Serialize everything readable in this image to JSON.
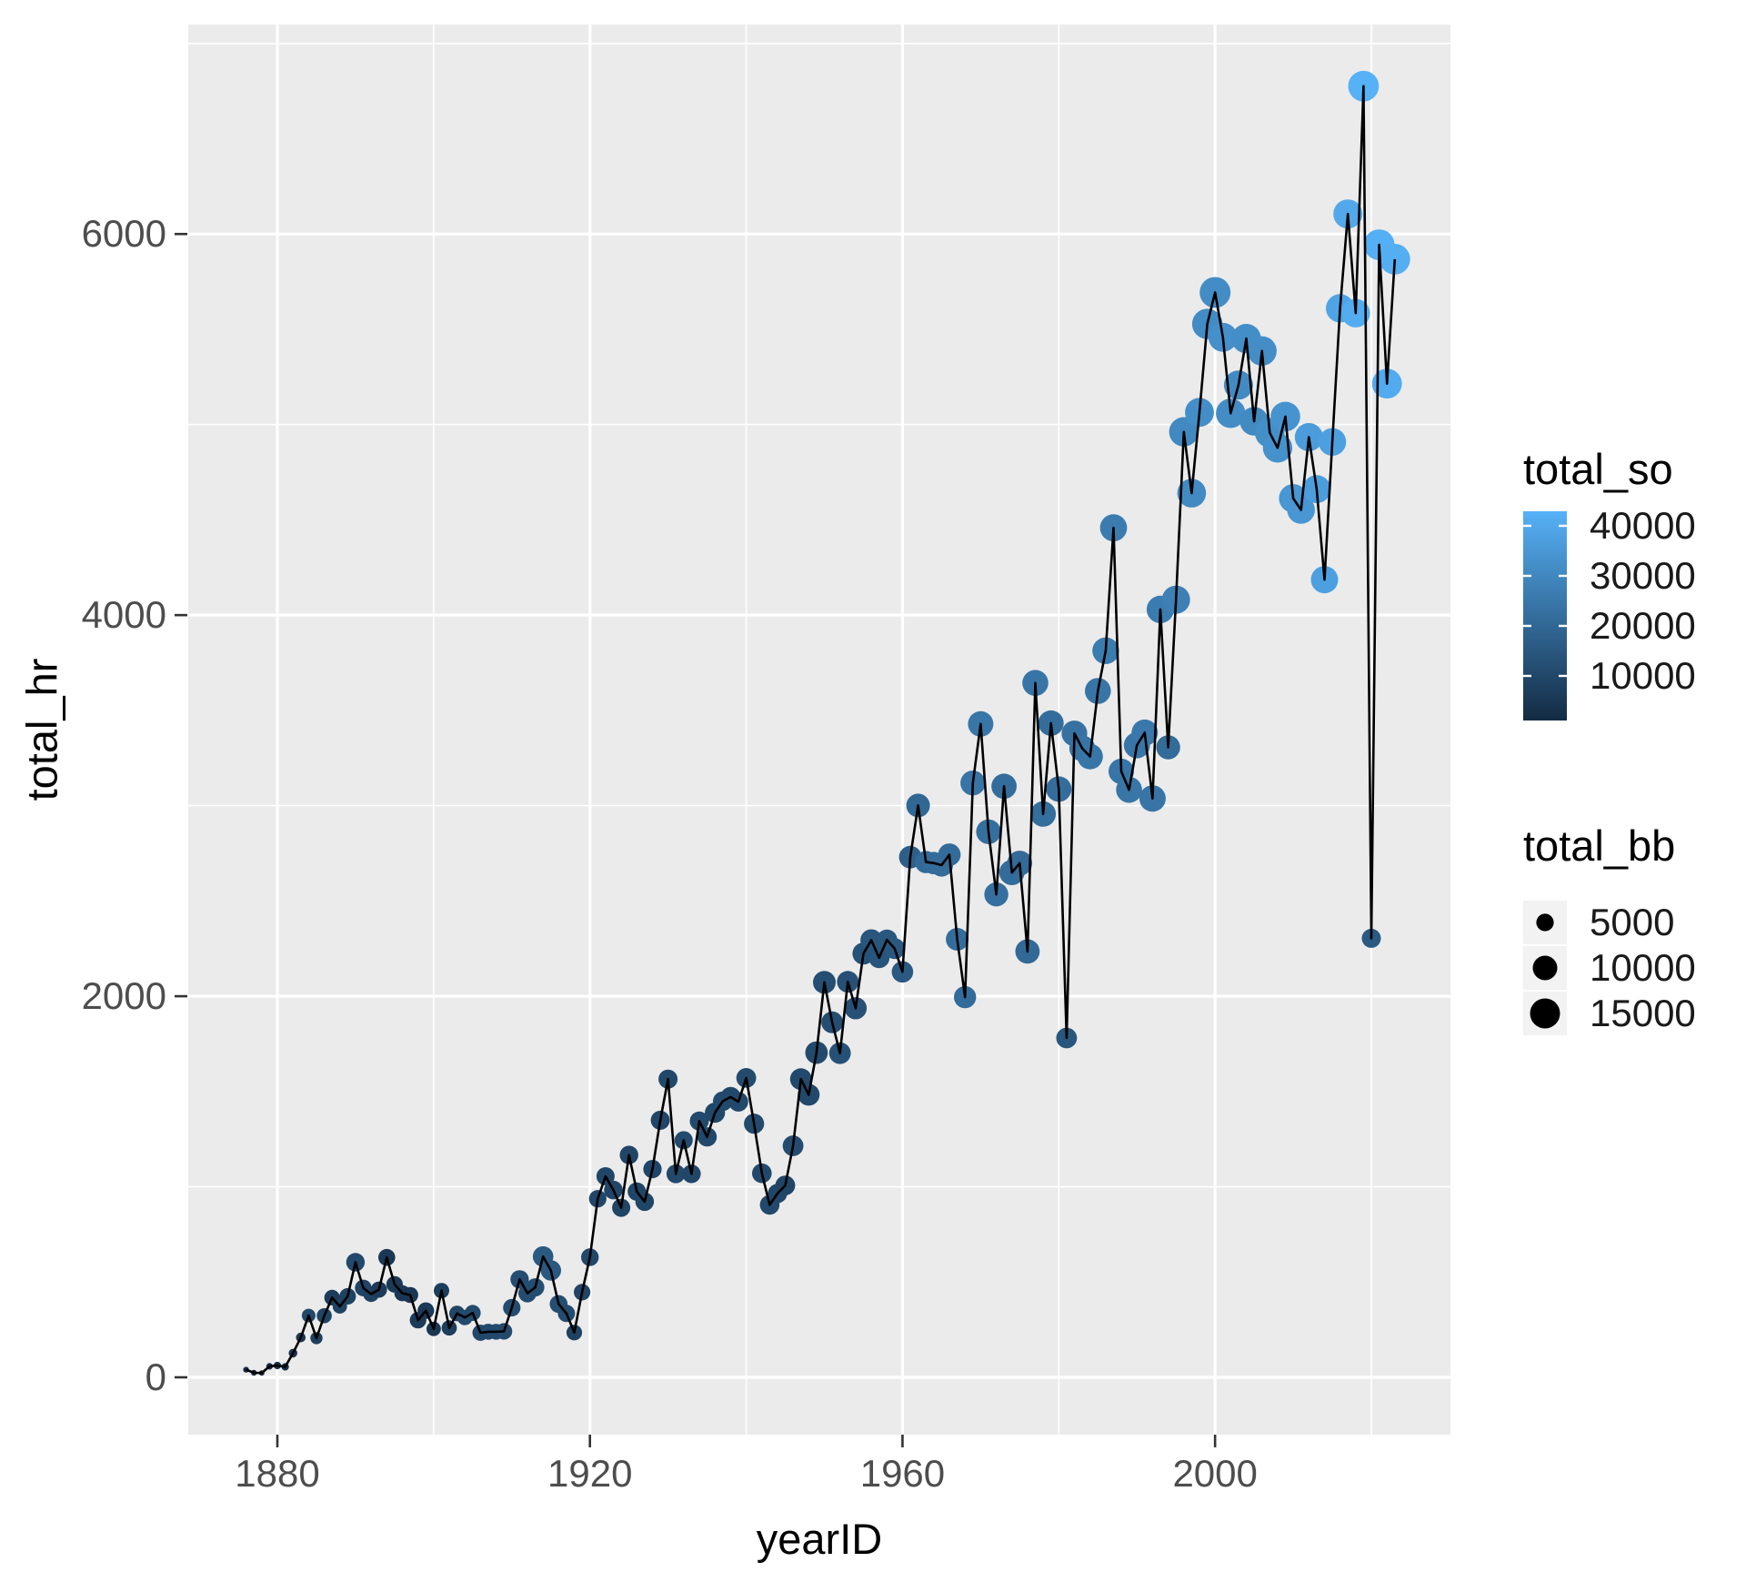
{
  "figure": {
    "background": "#FFFFFF",
    "panel_background": "#EBEBEB",
    "grid_color": "#FFFFFF",
    "line_color": "#000000",
    "axis_text_color": "#4D4D4D",
    "tick_mark_color": "#333333",
    "title_color": "#000000"
  },
  "axes": {
    "x": {
      "title": "yearID",
      "tick_labels": [
        "1880",
        "1920",
        "1960",
        "2000"
      ],
      "ticks": [
        1880,
        1920,
        1960,
        2000
      ],
      "minor_ticks": [
        1900,
        1940,
        1980,
        2020
      ]
    },
    "y": {
      "title": "total_hr",
      "tick_labels": [
        "0",
        "2000",
        "4000",
        "6000"
      ],
      "ticks": [
        0,
        2000,
        4000,
        6000
      ],
      "minor_ticks": [
        1000,
        3000,
        5000,
        7000
      ]
    }
  },
  "legends": {
    "color": {
      "title": "total_so",
      "tick_labels": [
        "40000",
        "30000",
        "20000",
        "10000"
      ],
      "ticks": [
        40000,
        30000,
        20000,
        10000
      ],
      "low_color": "#132B43",
      "high_color": "#56B1F7",
      "domain": [
        1000,
        42900
      ]
    },
    "size": {
      "title": "total_bb",
      "labels": [
        "5000",
        "10000",
        "15000"
      ],
      "values": [
        5000,
        10000,
        15000
      ],
      "dot_color": "#000000",
      "key_background": "#F2F2F2",
      "domain": [
        280,
        16000
      ]
    }
  },
  "chart_data": {
    "type": "line",
    "mark": "point+line",
    "title": "",
    "xlabel": "yearID",
    "ylabel": "total_hr",
    "color_field": "total_so",
    "size_field": "total_bb",
    "xlim": [
      1868.6,
      2030.4
    ],
    "ylim": [
      -340,
      7100
    ],
    "grid": true,
    "legend_position": "right",
    "columns": [
      "yearID",
      "total_hr",
      "total_so",
      "total_bb"
    ],
    "points": [
      [
        1876,
        40,
        1046,
        337
      ],
      [
        1877,
        24,
        1094,
        345
      ],
      [
        1878,
        23,
        1329,
        287
      ],
      [
        1879,
        58,
        2326,
        508
      ],
      [
        1880,
        62,
        2716,
        715
      ],
      [
        1881,
        55,
        2272,
        718
      ],
      [
        1882,
        127,
        4232,
        1060
      ],
      [
        1883,
        209,
        5267,
        1381
      ],
      [
        1884,
        324,
        10087,
        2899
      ],
      [
        1885,
        206,
        7004,
        2287
      ],
      [
        1886,
        323,
        8858,
        3611
      ],
      [
        1887,
        418,
        6269,
        3966
      ],
      [
        1888,
        372,
        8575,
        3265
      ],
      [
        1889,
        425,
        8055,
        4426
      ],
      [
        1890,
        604,
        10356,
        5635
      ],
      [
        1891,
        469,
        8854,
        4531
      ],
      [
        1892,
        437,
        8289,
        4047
      ],
      [
        1893,
        460,
        6050,
        4218
      ],
      [
        1894,
        629,
        5091,
        4653
      ],
      [
        1895,
        488,
        5340,
        4384
      ],
      [
        1896,
        441,
        5135,
        4121
      ],
      [
        1897,
        432,
        4839,
        4098
      ],
      [
        1898,
        300,
        5799,
        4430
      ],
      [
        1899,
        350,
        5562,
        4389
      ],
      [
        1900,
        254,
        4614,
        3294
      ],
      [
        1901,
        455,
        6764,
        3797
      ],
      [
        1902,
        259,
        6992,
        3772
      ],
      [
        1903,
        335,
        9096,
        3909
      ],
      [
        1904,
        314,
        10742,
        3792
      ],
      [
        1905,
        338,
        10678,
        4101
      ],
      [
        1906,
        234,
        10223,
        4193
      ],
      [
        1907,
        239,
        10226,
        4119
      ],
      [
        1908,
        239,
        10692,
        4038
      ],
      [
        1909,
        241,
        10751,
        4435
      ],
      [
        1910,
        365,
        11441,
        4953
      ],
      [
        1911,
        514,
        11618,
        5474
      ],
      [
        1912,
        441,
        11529,
        5425
      ],
      [
        1913,
        472,
        11804,
        5381
      ],
      [
        1914,
        634,
        15650,
        6905
      ],
      [
        1915,
        561,
        15194,
        6756
      ],
      [
        1916,
        385,
        11879,
        5147
      ],
      [
        1917,
        335,
        11307,
        4863
      ],
      [
        1918,
        235,
        8211,
        3880
      ],
      [
        1919,
        447,
        9045,
        4413
      ],
      [
        1920,
        630,
        9759,
        5022
      ],
      [
        1921,
        937,
        9550,
        4981
      ],
      [
        1922,
        1055,
        9308,
        5386
      ],
      [
        1923,
        983,
        9579,
        5722
      ],
      [
        1924,
        890,
        9023,
        5395
      ],
      [
        1925,
        1167,
        9038,
        5598
      ],
      [
        1926,
        975,
        9217,
        5558
      ],
      [
        1927,
        922,
        9067,
        5561
      ],
      [
        1928,
        1093,
        9410,
        5503
      ],
      [
        1929,
        1349,
        9261,
        5966
      ],
      [
        1930,
        1565,
        9953,
        5982
      ],
      [
        1931,
        1068,
        10120,
        5693
      ],
      [
        1932,
        1244,
        10732,
        5391
      ],
      [
        1933,
        1068,
        9610,
        5600
      ],
      [
        1934,
        1345,
        10618,
        5920
      ],
      [
        1935,
        1262,
        9979,
        6068
      ],
      [
        1936,
        1389,
        9774,
        6650
      ],
      [
        1937,
        1449,
        10642,
        6333
      ],
      [
        1938,
        1471,
        10371,
        6656
      ],
      [
        1939,
        1446,
        10280,
        6383
      ],
      [
        1940,
        1571,
        10906,
        6444
      ],
      [
        1941,
        1331,
        10577,
        6725
      ],
      [
        1942,
        1071,
        10401,
        6358
      ],
      [
        1943,
        905,
        10289,
        6340
      ],
      [
        1944,
        965,
        9561,
        6101
      ],
      [
        1945,
        1007,
        9047,
        6479
      ],
      [
        1946,
        1215,
        11463,
        7047
      ],
      [
        1947,
        1565,
        10499,
        7762
      ],
      [
        1948,
        1483,
        10506,
        7856
      ],
      [
        1949,
        1704,
        10768,
        8395
      ],
      [
        1950,
        2073,
        11935,
        8598
      ],
      [
        1951,
        1863,
        11599,
        7921
      ],
      [
        1952,
        1701,
        12852,
        7734
      ],
      [
        1953,
        2076,
        12604,
        7669
      ],
      [
        1954,
        1937,
        12650,
        8086
      ],
      [
        1955,
        2224,
        13349,
        7943
      ],
      [
        1956,
        2294,
        14312,
        7922
      ],
      [
        1957,
        2202,
        14277,
        7245
      ],
      [
        1958,
        2296,
        14737,
        7111
      ],
      [
        1959,
        2250,
        15160,
        7190
      ],
      [
        1960,
        2128,
        15378,
        7559
      ],
      [
        1961,
        2730,
        17181,
        8376
      ],
      [
        1962,
        3001,
        19671,
        9198
      ],
      [
        1963,
        2704,
        20574,
        8095
      ],
      [
        1964,
        2699,
        21242,
        8222
      ],
      [
        1965,
        2688,
        21363,
        8758
      ],
      [
        1966,
        2743,
        21100,
        8364
      ],
      [
        1967,
        2299,
        21627,
        8583
      ],
      [
        1968,
        1995,
        21163,
        8166
      ],
      [
        1969,
        3119,
        23863,
        10240
      ],
      [
        1970,
        3429,
        24380,
        10762
      ],
      [
        1971,
        2863,
        22145,
        10156
      ],
      [
        1972,
        2534,
        22403,
        9538
      ],
      [
        1973,
        3102,
        21528,
        10700
      ],
      [
        1974,
        2649,
        21215,
        10569
      ],
      [
        1975,
        2698,
        20822,
        10517
      ],
      [
        1976,
        2235,
        20280,
        9837
      ],
      [
        1977,
        3644,
        24023,
        11268
      ],
      [
        1978,
        2956,
        21839,
        10811
      ],
      [
        1979,
        3433,
        21576,
        10740
      ],
      [
        1980,
        3087,
        21741,
        10826
      ],
      [
        1981,
        1781,
        14305,
        7072
      ],
      [
        1982,
        3379,
        22809,
        10865
      ],
      [
        1983,
        3301,
        23388,
        11063
      ],
      [
        1984,
        3258,
        24302,
        10876
      ],
      [
        1985,
        3602,
        24049,
        11260
      ],
      [
        1986,
        3813,
        26184,
        11852
      ],
      [
        1987,
        4458,
        26277,
        12239
      ],
      [
        1988,
        3180,
        24213,
        10835
      ],
      [
        1989,
        3083,
        24339,
        11218
      ],
      [
        1990,
        3317,
        24562,
        11441
      ],
      [
        1991,
        3383,
        25194,
        11539
      ],
      [
        1992,
        3038,
        24053,
        11630
      ],
      [
        1993,
        4030,
        26310,
        12654
      ],
      [
        1994,
        3306,
        21009,
        9618
      ],
      [
        1995,
        4081,
        27608,
        13251
      ],
      [
        1996,
        4962,
        30255,
        14431
      ],
      [
        1997,
        4640,
        30798,
        13702
      ],
      [
        1998,
        5064,
        31893,
        13897
      ],
      [
        1999,
        5528,
        31119,
        15407
      ],
      [
        2000,
        5693,
        31356,
        15942
      ],
      [
        2001,
        5458,
        32404,
        13944
      ],
      [
        2002,
        5059,
        31394,
        14564
      ],
      [
        2003,
        5207,
        30801,
        14155
      ],
      [
        2004,
        5451,
        31828,
        14587
      ],
      [
        2005,
        5017,
        30644,
        13544
      ],
      [
        2006,
        5386,
        31655,
        14525
      ],
      [
        2007,
        4957,
        32189,
        14737
      ],
      [
        2008,
        4878,
        32884,
        14546
      ],
      [
        2009,
        5042,
        33591,
        14618
      ],
      [
        2010,
        4613,
        34306,
        13582
      ],
      [
        2011,
        4552,
        34488,
        12955
      ],
      [
        2012,
        4934,
        36426,
        13216
      ],
      [
        2013,
        4661,
        36710,
        13029
      ],
      [
        2014,
        4186,
        37441,
        12446
      ],
      [
        2015,
        4909,
        37446,
        12746
      ],
      [
        2016,
        5610,
        38982,
        13460
      ],
      [
        2017,
        6105,
        40104,
        14151
      ],
      [
        2018,
        5585,
        41207,
        13689
      ],
      [
        2019,
        6776,
        42823,
        15895
      ],
      [
        2020,
        2304,
        15586,
        5988
      ],
      [
        2021,
        5944,
        42145,
        15794
      ],
      [
        2022,
        5215,
        40812,
        14853
      ],
      [
        2023,
        5868,
        41843,
        15819
      ]
    ]
  }
}
